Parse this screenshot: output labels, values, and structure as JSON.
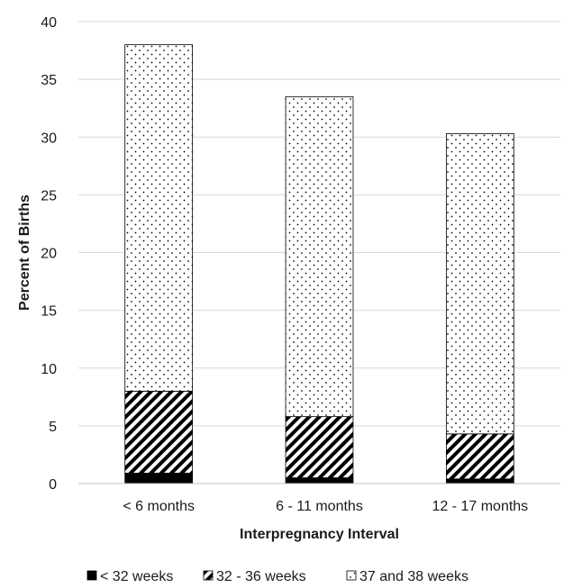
{
  "chart_data": {
    "type": "bar",
    "stacked": true,
    "categories": [
      "< 6 months",
      "6 - 11 months",
      "12 - 17 months"
    ],
    "series": [
      {
        "name": "< 32 weeks",
        "values": [
          0.9,
          0.5,
          0.4
        ],
        "color": "#000000",
        "pattern": "solid"
      },
      {
        "name": "32 - 36 weeks",
        "values": [
          7.1,
          5.3,
          3.9
        ],
        "color": "#000000",
        "pattern": "diagonal-stripes"
      },
      {
        "name": "37 and 38 weeks",
        "values": [
          30.0,
          27.7,
          26.0
        ],
        "color": "#000000",
        "pattern": "dots"
      }
    ],
    "xlabel": "Interpregnancy Interval",
    "ylabel": "Percent of Births",
    "ylim": [
      0,
      40
    ],
    "yticks": [
      0,
      5,
      10,
      15,
      20,
      25,
      30,
      35,
      40
    ],
    "grid": true,
    "legend": "bottom"
  }
}
